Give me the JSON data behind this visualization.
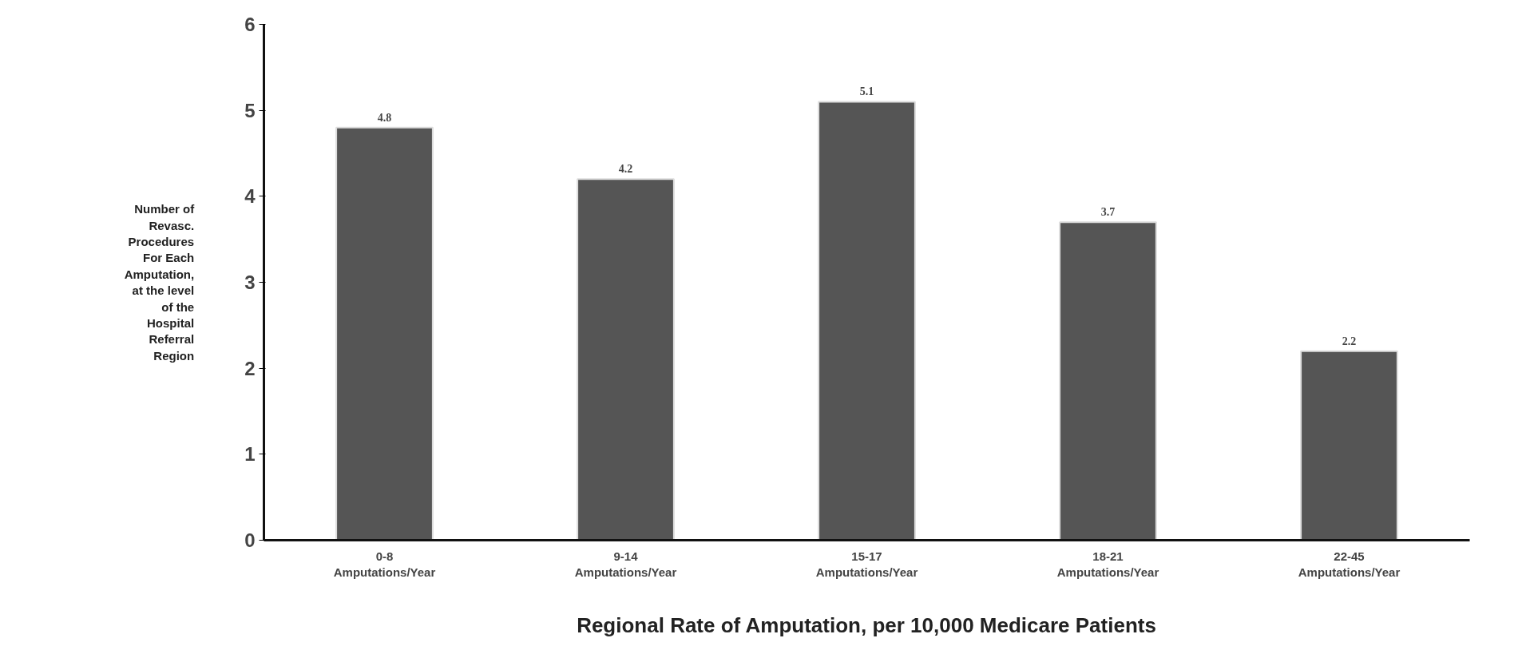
{
  "chart_data": {
    "type": "bar",
    "xlabel": "Regional Rate of Amputation, per 10,000 Medicare Patients",
    "ylabel": "Number of Revasc. Procedures For Each Amputation, at the level of the Hospital Referral Region",
    "categories": [
      "0-8\nAmputations/Year",
      "9-14\nAmputations/Year",
      "15-17\nAmputations/Year",
      "18-21\nAmputations/Year",
      "22-45\nAmputations/Year"
    ],
    "values": [
      4.8,
      4.2,
      5.1,
      3.7,
      2.2
    ],
    "color": "#555555",
    "ylim": [
      0,
      6
    ],
    "yticks": [
      0,
      1,
      2,
      3,
      4,
      5,
      6
    ],
    "grid": false,
    "data_labels": true
  }
}
